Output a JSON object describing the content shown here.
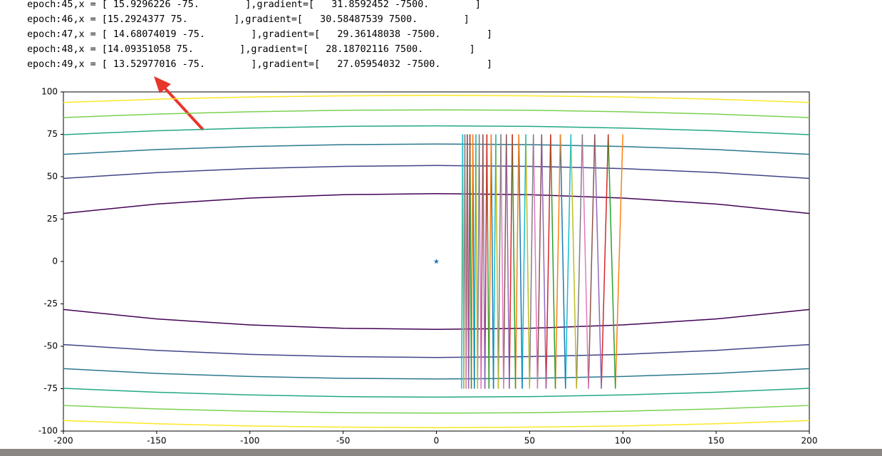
{
  "log_lines": [
    "epoch:45,x = [ 15.9296226 -75.        ],gradient=[   31.8592452 -7500.        ]",
    "epoch:46,x = [15.2924377 75.        ],gradient=[   30.58487539 7500.        ]",
    "epoch:47,x = [ 14.68074019 -75.        ],gradient=[   29.36148038 -7500.        ]",
    "epoch:48,x = [14.09351058 75.        ],gradient=[   28.18702116 7500.        ]",
    "epoch:49,x = [ 13.52977016 -75.        ],gradient=[   27.05954032 -7500.        ]"
  ],
  "chart_data": {
    "type": "contour",
    "xlim": [
      -200,
      200
    ],
    "ylim": [
      -100,
      100
    ],
    "xticks": [
      -200,
      -150,
      -100,
      -50,
      0,
      50,
      100,
      150,
      200
    ],
    "yticks": [
      -100,
      -75,
      -50,
      -25,
      0,
      25,
      50,
      75,
      100
    ],
    "contour_x": [
      -200,
      -150,
      -100,
      -50,
      0,
      50,
      100,
      150,
      200
    ],
    "contours": [
      {
        "color": "#440154",
        "upper": [
          28.3,
          33.9,
          37.4,
          39.4,
          40,
          39.4,
          37.4,
          33.9,
          28.3
        ],
        "lower": [
          -28.3,
          -33.9,
          -37.4,
          -39.4,
          -40,
          -39.4,
          -37.4,
          -33.9,
          -28.3
        ]
      },
      {
        "color": "#414487",
        "upper": [
          49,
          52.4,
          54.8,
          56.1,
          56.6,
          56.1,
          54.8,
          52.4,
          49
        ],
        "lower": [
          -49,
          -52.4,
          -54.8,
          -56.1,
          -56.6,
          -56.1,
          -54.8,
          -52.4,
          -49
        ]
      },
      {
        "color": "#2a788e",
        "upper": [
          63.2,
          66,
          67.8,
          68.9,
          69.3,
          68.9,
          67.8,
          66,
          63.2
        ],
        "lower": [
          -63.2,
          -66,
          -67.8,
          -68.9,
          -69.3,
          -68.9,
          -67.8,
          -66,
          -63.2
        ]
      },
      {
        "color": "#22a884",
        "upper": [
          74.8,
          77.1,
          78.7,
          79.7,
          80,
          79.7,
          78.7,
          77.1,
          74.8
        ],
        "lower": [
          -74.8,
          -77.1,
          -78.7,
          -79.7,
          -80,
          -79.7,
          -78.7,
          -77.1,
          -74.8
        ]
      },
      {
        "color": "#7ad151",
        "upper": [
          84.9,
          86.9,
          88.3,
          89.2,
          89.4,
          89.2,
          88.3,
          86.9,
          84.9
        ],
        "lower": [
          -84.9,
          -86.9,
          -88.3,
          -89.2,
          -89.4,
          -89.2,
          -88.3,
          -86.9,
          -84.9
        ]
      },
      {
        "color": "#fde725",
        "upper": [
          93.8,
          95.7,
          97,
          97.7,
          98,
          97.7,
          97,
          95.7,
          93.8
        ],
        "lower": [
          -93.8,
          -95.7,
          -97,
          -97.7,
          -98,
          -97.7,
          -97,
          -95.7,
          -93.8
        ]
      }
    ],
    "path": {
      "x": [
        100,
        96,
        92.16,
        88.47,
        84.93,
        81.54,
        78.28,
        75.14,
        72.14,
        69.25,
        66.48,
        63.82,
        61.27,
        58.82,
        56.47,
        54.21,
        52.04,
        49.96,
        47.96,
        46.04,
        44.2,
        42.43,
        40.73,
        39.11,
        37.54,
        36.04,
        34.6,
        33.21,
        31.89,
        30.61,
        29.39,
        28.21,
        27.08,
        26,
        24.96,
        23.96,
        23,
        22.08,
        21.2,
        20.35,
        19.54,
        18.76,
        18,
        17.28,
        16.59,
        15.93,
        15.29,
        14.68,
        14.09,
        13.53
      ],
      "y": [
        75,
        -75,
        75,
        -75,
        75,
        -75,
        75,
        -75,
        75,
        -75,
        75,
        -75,
        75,
        -75,
        75,
        -75,
        75,
        -75,
        75,
        -75,
        75,
        -75,
        75,
        -75,
        75,
        -75,
        75,
        -75,
        75,
        -75,
        75,
        -75,
        75,
        -75,
        75,
        -75,
        75,
        -75,
        75,
        -75,
        75,
        -75,
        75,
        -75,
        75,
        -75,
        75,
        -75,
        75,
        -75
      ],
      "colors": [
        "#ff7f0e",
        "#2ca02c",
        "#d62728",
        "#9467bd",
        "#8c564b",
        "#e377c2",
        "#7f7f7f",
        "#bcbd22",
        "#17becf",
        "#1f77b4"
      ]
    },
    "marker": {
      "x": 0,
      "y": 0,
      "color": "#1f77b4"
    }
  }
}
